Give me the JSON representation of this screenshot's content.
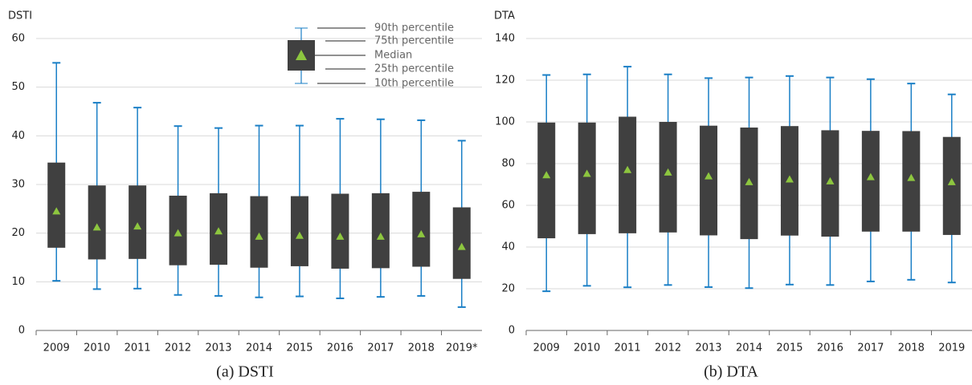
{
  "chart_data": [
    {
      "type": "box",
      "title": "DSTI",
      "caption": "(a) DSTI",
      "categories": [
        "2009",
        "2010",
        "2011",
        "2012",
        "2013",
        "2014",
        "2015",
        "2016",
        "2017",
        "2018",
        "2019*"
      ],
      "series": [
        {
          "name": "90th percentile",
          "values": [
            55,
            46.8,
            45.8,
            42,
            41.6,
            42.1,
            42.1,
            43.5,
            43.4,
            43.2,
            39
          ]
        },
        {
          "name": "75th percentile",
          "values": [
            34.5,
            29.8,
            29.8,
            27.7,
            28.2,
            27.6,
            27.6,
            28.1,
            28.2,
            28.5,
            25.3
          ]
        },
        {
          "name": "Median",
          "values": [
            24.5,
            21.2,
            21.4,
            20,
            20.4,
            19.3,
            19.5,
            19.3,
            19.3,
            19.8,
            17.2
          ]
        },
        {
          "name": "25th percentile",
          "values": [
            17,
            14.6,
            14.7,
            13.4,
            13.5,
            12.9,
            13.2,
            12.7,
            12.8,
            13.1,
            10.6
          ]
        },
        {
          "name": "10th percentile",
          "values": [
            10.2,
            8.5,
            8.6,
            7.3,
            7.1,
            6.8,
            7,
            6.6,
            6.9,
            7.1,
            4.8
          ]
        }
      ],
      "ylim": [
        0,
        60
      ],
      "yticks": [
        0,
        10,
        20,
        30,
        40,
        50,
        60
      ],
      "grid": true,
      "legend": true,
      "box_color": "#404040",
      "whisker_color": "#1a7fc6",
      "median_color": "#8dc63f"
    },
    {
      "type": "box",
      "title": "DTA",
      "caption": "(b) DTA",
      "categories": [
        "2009",
        "2010",
        "2011",
        "2012",
        "2013",
        "2014",
        "2015",
        "2016",
        "2017",
        "2018",
        "2019"
      ],
      "series": [
        {
          "name": "90th percentile",
          "values": [
            122.5,
            122.8,
            126.5,
            122.8,
            121,
            121.3,
            122,
            121.3,
            120.5,
            118.4,
            113.2
          ]
        },
        {
          "name": "75th percentile",
          "values": [
            99.7,
            99.7,
            102.5,
            100,
            98.2,
            97.3,
            98,
            96,
            95.7,
            95.6,
            92.8
          ]
        },
        {
          "name": "Median",
          "values": [
            74.5,
            75.2,
            77,
            75.8,
            74,
            71.2,
            72.5,
            71.6,
            73.6,
            73.2,
            71.2
          ]
        },
        {
          "name": "25th percentile",
          "values": [
            44.2,
            46.2,
            46.6,
            47,
            45.6,
            43.8,
            45.5,
            45,
            47.4,
            47.4,
            45.8
          ]
        },
        {
          "name": "10th percentile",
          "values": [
            18.8,
            21.4,
            20.7,
            21.8,
            20.8,
            20.3,
            22,
            21.8,
            23.5,
            24.3,
            23
          ]
        }
      ],
      "ylim": [
        0,
        140
      ],
      "yticks": [
        0,
        20,
        40,
        60,
        80,
        100,
        120,
        140
      ],
      "grid": true,
      "legend": false,
      "box_color": "#404040",
      "whisker_color": "#1a7fc6",
      "median_color": "#8dc63f"
    }
  ]
}
